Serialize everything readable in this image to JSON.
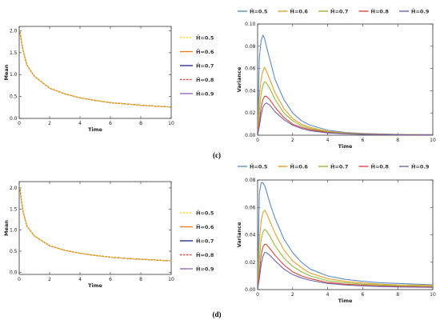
{
  "panel_labels": [
    "(c)",
    "(d)"
  ],
  "legend_labels": [
    "H̃=0.5",
    "H̃=0.6",
    "H̃=0.7",
    "H̃=0.8",
    "H̃=0.9"
  ],
  "colors": {
    "mean": [
      "#f2dc3a",
      "#ef7d22",
      "#2b2f8f",
      "#e0463c",
      "#8f6fbf"
    ],
    "variance": [
      "#5b8dc4",
      "#e3a030",
      "#98b83c",
      "#d9473a",
      "#7563a8"
    ]
  },
  "chart_data": [
    {
      "type": "line",
      "panel": "(c)",
      "chart": "mean",
      "xlabel": "Time",
      "ylabel": "Mean",
      "xlim": [
        0,
        10
      ],
      "ylim": [
        0,
        2.1
      ],
      "xticks": [
        0,
        2,
        4,
        6,
        8,
        10
      ],
      "yticks": [
        0.0,
        0.5,
        1.0,
        1.5,
        2.0
      ],
      "legend_position": "right",
      "x": [
        0.05,
        0.1,
        0.25,
        0.5,
        1,
        2,
        3,
        4,
        5,
        6,
        7,
        8,
        9,
        10
      ],
      "series": [
        {
          "name": "H̃=0.5",
          "values": [
            2.0,
            1.86,
            1.56,
            1.22,
            0.96,
            0.69,
            0.56,
            0.47,
            0.41,
            0.36,
            0.33,
            0.3,
            0.28,
            0.26
          ]
        },
        {
          "name": "H̃=0.6",
          "values": [
            2.0,
            1.86,
            1.56,
            1.22,
            0.96,
            0.69,
            0.56,
            0.47,
            0.41,
            0.36,
            0.33,
            0.3,
            0.28,
            0.26
          ]
        },
        {
          "name": "H̃=0.7",
          "values": [
            2.0,
            1.86,
            1.56,
            1.22,
            0.96,
            0.69,
            0.56,
            0.47,
            0.41,
            0.36,
            0.33,
            0.3,
            0.28,
            0.26
          ]
        },
        {
          "name": "H̃=0.8",
          "values": [
            2.0,
            1.86,
            1.56,
            1.22,
            0.96,
            0.69,
            0.56,
            0.47,
            0.41,
            0.36,
            0.33,
            0.3,
            0.28,
            0.26
          ]
        },
        {
          "name": "H̃=0.9",
          "values": [
            2.0,
            1.86,
            1.56,
            1.22,
            0.96,
            0.69,
            0.56,
            0.47,
            0.41,
            0.36,
            0.33,
            0.3,
            0.28,
            0.26
          ]
        }
      ]
    },
    {
      "type": "line",
      "panel": "(c)",
      "chart": "variance",
      "xlabel": "Time",
      "ylabel": "Variance",
      "xlim": [
        0,
        10
      ],
      "ylim": [
        0,
        0.1
      ],
      "xticks": [
        0,
        2,
        4,
        6,
        8,
        10
      ],
      "yticks": [
        0.0,
        0.02,
        0.04,
        0.06,
        0.08,
        0.1
      ],
      "legend_position": "top",
      "x": [
        0,
        0.1,
        0.2,
        0.3,
        0.4,
        0.5,
        0.7,
        1,
        1.5,
        2,
        2.5,
        3,
        4,
        5,
        6,
        7,
        8,
        10
      ],
      "series": [
        {
          "name": "H̃=0.5",
          "values": [
            0,
            0.07,
            0.085,
            0.09,
            0.087,
            0.08,
            0.068,
            0.05,
            0.032,
            0.02,
            0.013,
            0.009,
            0.0045,
            0.0025,
            0.0016,
            0.0011,
            0.0008,
            0.0005
          ]
        },
        {
          "name": "H̃=0.6",
          "values": [
            0,
            0.035,
            0.05,
            0.058,
            0.061,
            0.058,
            0.05,
            0.038,
            0.024,
            0.015,
            0.01,
            0.007,
            0.0035,
            0.002,
            0.0013,
            0.0009,
            0.0006,
            0.0004
          ]
        },
        {
          "name": "H̃=0.7",
          "values": [
            0,
            0.022,
            0.037,
            0.045,
            0.048,
            0.047,
            0.042,
            0.032,
            0.02,
            0.013,
            0.0085,
            0.006,
            0.003,
            0.0017,
            0.0011,
            0.0008,
            0.0005,
            0.0003
          ]
        },
        {
          "name": "H̃=0.8",
          "values": [
            0,
            0.012,
            0.025,
            0.032,
            0.035,
            0.035,
            0.032,
            0.025,
            0.016,
            0.01,
            0.007,
            0.005,
            0.0025,
            0.0014,
            0.0009,
            0.0006,
            0.0004,
            0.0002
          ]
        },
        {
          "name": "H̃=0.9",
          "values": [
            0,
            0.008,
            0.018,
            0.025,
            0.028,
            0.029,
            0.027,
            0.021,
            0.014,
            0.009,
            0.006,
            0.004,
            0.002,
            0.0012,
            0.0008,
            0.0005,
            0.0003,
            0.0002
          ]
        }
      ]
    },
    {
      "type": "line",
      "panel": "(d)",
      "chart": "mean",
      "xlabel": "Time",
      "ylabel": "Mean",
      "xlim": [
        0,
        10
      ],
      "ylim": [
        -0.05,
        2.15
      ],
      "xticks": [
        0,
        2,
        4,
        6,
        8,
        10
      ],
      "yticks": [
        0.0,
        0.5,
        1.0,
        1.5,
        2.0
      ],
      "legend_position": "right",
      "x": [
        0.05,
        0.1,
        0.25,
        0.5,
        1,
        2,
        3,
        4,
        5,
        6,
        7,
        8,
        9,
        10
      ],
      "series": [
        {
          "name": "H̃=0.5",
          "values": [
            2.0,
            1.83,
            1.45,
            1.1,
            0.86,
            0.63,
            0.52,
            0.45,
            0.4,
            0.36,
            0.33,
            0.31,
            0.29,
            0.27
          ]
        },
        {
          "name": "H̃=0.6",
          "values": [
            2.0,
            1.83,
            1.45,
            1.1,
            0.86,
            0.63,
            0.52,
            0.45,
            0.4,
            0.36,
            0.33,
            0.31,
            0.29,
            0.27
          ]
        },
        {
          "name": "H̃=0.7",
          "values": [
            2.0,
            1.83,
            1.45,
            1.1,
            0.86,
            0.63,
            0.52,
            0.45,
            0.4,
            0.36,
            0.33,
            0.31,
            0.29,
            0.27
          ]
        },
        {
          "name": "H̃=0.8",
          "values": [
            2.0,
            1.83,
            1.45,
            1.1,
            0.86,
            0.63,
            0.52,
            0.45,
            0.4,
            0.36,
            0.33,
            0.31,
            0.29,
            0.27
          ]
        },
        {
          "name": "H̃=0.9",
          "values": [
            2.0,
            1.83,
            1.45,
            1.1,
            0.86,
            0.63,
            0.52,
            0.45,
            0.4,
            0.36,
            0.33,
            0.31,
            0.29,
            0.27
          ]
        }
      ]
    },
    {
      "type": "line",
      "panel": "(d)",
      "chart": "variance",
      "xlabel": "Time",
      "ylabel": "Variance",
      "xlim": [
        0,
        10
      ],
      "ylim": [
        0,
        0.08
      ],
      "xticks": [
        0,
        2,
        4,
        6,
        8,
        10
      ],
      "yticks": [
        0.0,
        0.02,
        0.04,
        0.06,
        0.08
      ],
      "legend_position": "top",
      "x": [
        0,
        0.1,
        0.2,
        0.3,
        0.4,
        0.5,
        0.7,
        1,
        1.5,
        2,
        2.5,
        3,
        4,
        5,
        6,
        7,
        8,
        10
      ],
      "series": [
        {
          "name": "H̃=0.5",
          "values": [
            0,
            0.07,
            0.078,
            0.078,
            0.076,
            0.072,
            0.063,
            0.052,
            0.037,
            0.027,
            0.02,
            0.015,
            0.01,
            0.0075,
            0.006,
            0.005,
            0.0045,
            0.0035
          ]
        },
        {
          "name": "H̃=0.6",
          "values": [
            0,
            0.035,
            0.05,
            0.056,
            0.058,
            0.056,
            0.05,
            0.041,
            0.029,
            0.021,
            0.016,
            0.012,
            0.008,
            0.006,
            0.0048,
            0.004,
            0.0035,
            0.003
          ]
        },
        {
          "name": "H̃=0.7",
          "values": [
            0,
            0.022,
            0.036,
            0.042,
            0.044,
            0.043,
            0.039,
            0.032,
            0.023,
            0.017,
            0.013,
            0.01,
            0.0065,
            0.005,
            0.004,
            0.0033,
            0.0028,
            0.0024
          ]
        },
        {
          "name": "H̃=0.8",
          "values": [
            0,
            0.012,
            0.025,
            0.031,
            0.033,
            0.033,
            0.03,
            0.025,
            0.018,
            0.013,
            0.01,
            0.008,
            0.0052,
            0.004,
            0.0032,
            0.0026,
            0.0022,
            0.0019
          ]
        },
        {
          "name": "H̃=0.9",
          "values": [
            0,
            0.008,
            0.018,
            0.024,
            0.027,
            0.027,
            0.025,
            0.021,
            0.015,
            0.011,
            0.0085,
            0.0068,
            0.0045,
            0.0034,
            0.0027,
            0.0022,
            0.0019,
            0.0016
          ]
        }
      ]
    }
  ]
}
